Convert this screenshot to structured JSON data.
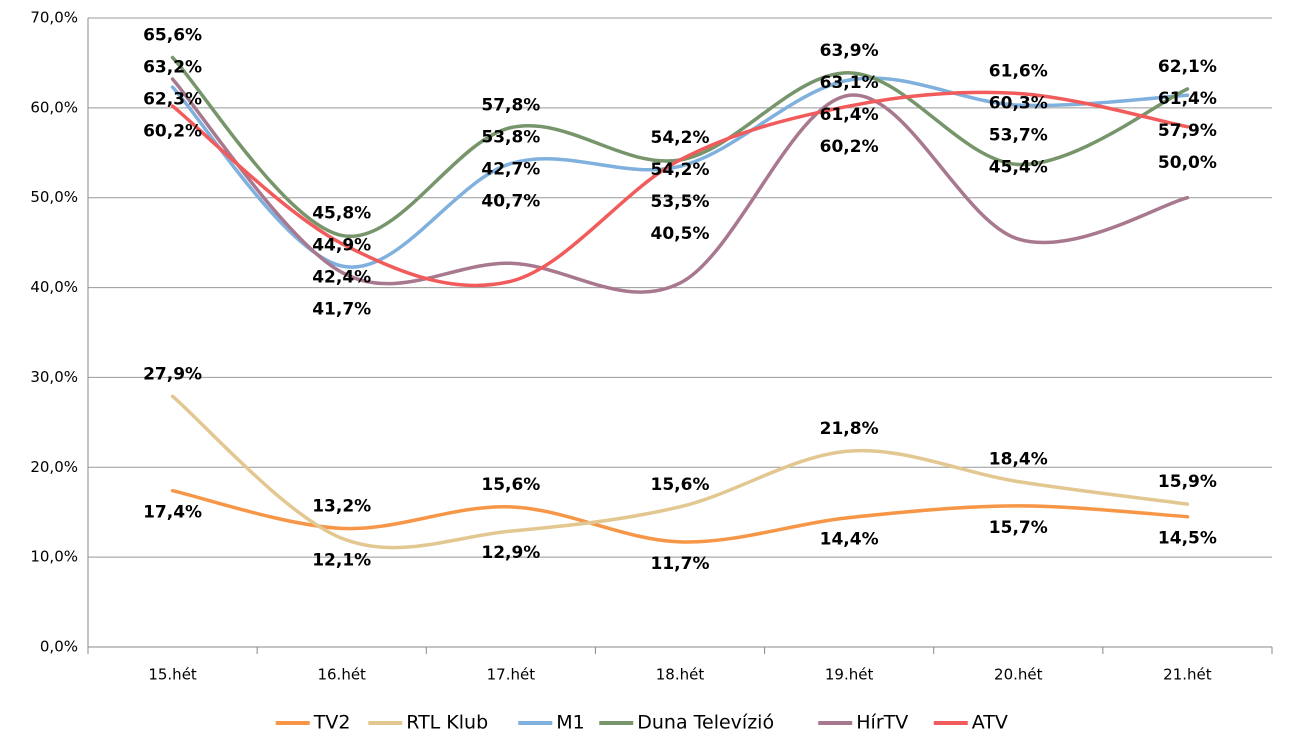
{
  "chart_data": {
    "type": "line",
    "categories": [
      "15.hét",
      "16.hét",
      "17.hét",
      "18.hét",
      "19.hét",
      "20.hét",
      "21.hét"
    ],
    "ylim": [
      0,
      70
    ],
    "yticks": [
      {
        "value": 0,
        "label": "0,0%"
      },
      {
        "value": 10,
        "label": "10,0%"
      },
      {
        "value": 20,
        "label": "20,0%"
      },
      {
        "value": 30,
        "label": "30,0%"
      },
      {
        "value": 40,
        "label": "40,0%"
      },
      {
        "value": 50,
        "label": "50,0%"
      },
      {
        "value": 60,
        "label": "60,0%"
      },
      {
        "value": 70,
        "label": "70,0%"
      }
    ],
    "grid": true,
    "legend": "bottom",
    "series": [
      {
        "name": "TV2",
        "color": "#f79646",
        "values": [
          17.4,
          13.2,
          15.6,
          11.7,
          14.4,
          15.7,
          14.5
        ],
        "value_labels": [
          "17,4%",
          "13,2%",
          "15,6%",
          "11,7%",
          "14,4%",
          "15,7%",
          "14,5%"
        ]
      },
      {
        "name": "RTL Klub",
        "color": "#e3c791",
        "values": [
          27.9,
          12.1,
          12.9,
          15.6,
          21.8,
          18.4,
          15.9
        ],
        "value_labels": [
          "27,9%",
          "12,1%",
          "12,9%",
          "15,6%",
          "21,8%",
          "18,4%",
          "15,9%"
        ]
      },
      {
        "name": "M1",
        "color": "#7fb0de",
        "values": [
          62.3,
          42.4,
          53.8,
          53.5,
          63.1,
          60.3,
          61.4
        ],
        "value_labels": [
          "62,3%",
          "42,4%",
          "53,8%",
          "53,5%",
          "63,1%",
          "60,3%",
          "61,4%"
        ]
      },
      {
        "name": "Duna Televízió",
        "color": "#77956b",
        "values": [
          65.6,
          45.8,
          57.8,
          54.2,
          63.9,
          53.7,
          62.1
        ],
        "value_labels": [
          "65,6%",
          "45,8%",
          "57,8%",
          "54,2%",
          "63,9%",
          "53,7%",
          "62,1%"
        ]
      },
      {
        "name": "HírTV",
        "color": "#a8788f",
        "values": [
          63.2,
          41.7,
          42.7,
          40.5,
          61.4,
          45.4,
          50.0
        ],
        "value_labels": [
          "63,2%",
          "41,7%",
          "42,7%",
          "40,5%",
          "61,4%",
          "45,4%",
          "50,0%"
        ]
      },
      {
        "name": "ATV",
        "color": "#f25b5b",
        "values": [
          60.2,
          44.9,
          40.7,
          54.2,
          60.2,
          61.6,
          57.9
        ],
        "value_labels": [
          "60,2%",
          "44,9%",
          "40,7%",
          "54,2%",
          "60,2%",
          "61,6%",
          "57,9%"
        ]
      }
    ]
  }
}
